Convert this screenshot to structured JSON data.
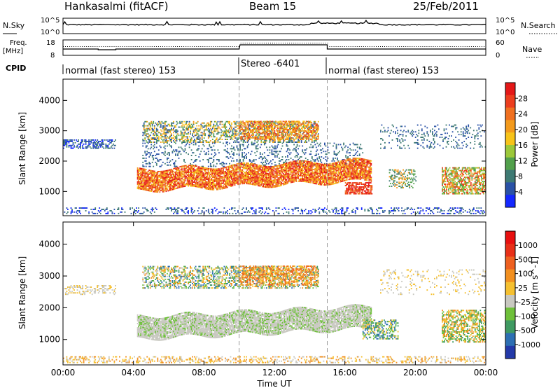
{
  "header": {
    "radar": "Hankasalmi (fitACF)",
    "beam": "Beam 15",
    "date": "25/Feb/2011"
  },
  "noise_panel": {
    "left_label": "N.Sky",
    "right_label": "N.Search",
    "y_ticks": [
      "10^5",
      "10^0"
    ]
  },
  "freq_panel": {
    "left_label_1": "Freq.",
    "left_label_2": "[MHz]",
    "right_label": "Nave",
    "left_ticks": [
      "18",
      "8"
    ],
    "right_ticks": [
      "60",
      "0"
    ]
  },
  "cpid_panel": {
    "label": "CPID",
    "segments": [
      {
        "text": "normal (fast stereo) 153",
        "start_hour": 0
      },
      {
        "text": "Stereo -6401",
        "start_hour": 10
      },
      {
        "text": "normal (fast stereo) 153",
        "start_hour": 15
      }
    ]
  },
  "chart_data": [
    {
      "type": "heatmap",
      "title": "",
      "xlabel": "",
      "ylabel": "Slant Range [km]",
      "xlim": [
        0,
        24
      ],
      "ylim": [
        200,
        4700
      ],
      "y_ticks": [
        1000,
        2000,
        3000,
        4000
      ],
      "mode_changes_hours": [
        10,
        15
      ],
      "colorbar": {
        "label": "Power [dB]",
        "tick_labels": [
          "4",
          "8",
          "12",
          "16",
          "20",
          "24",
          "28"
        ],
        "colors": [
          "#1428ff",
          "#2a52a6",
          "#3e7a73",
          "#52a04c",
          "#9cc83a",
          "#f7c319",
          "#f39a1c",
          "#f07020",
          "#ec3e1e",
          "#e41818"
        ]
      }
    },
    {
      "type": "heatmap",
      "title": "",
      "xlabel": "Time UT",
      "ylabel": "Slant Range [km]",
      "xlim": [
        0,
        24
      ],
      "ylim": [
        200,
        4700
      ],
      "y_ticks": [
        1000,
        2000,
        3000,
        4000
      ],
      "mode_changes_hours": [
        10,
        15
      ],
      "x_tick_labels": [
        "00:00",
        "04:00",
        "08:00",
        "12:00",
        "16:00",
        "20:00",
        "00:00"
      ],
      "colorbar": {
        "label": "Velocity [m s^-1]",
        "tick_labels": [
          "1000",
          "500",
          "100",
          "25",
          "-25",
          "-100",
          "-500",
          "-1000"
        ],
        "colors": [
          "#2339a8",
          "#2d6fb3",
          "#3f9a62",
          "#6ec03a",
          "#c8c8c0",
          "#f5c030",
          "#f29020",
          "#ee6020",
          "#e83018",
          "#e81010"
        ]
      }
    }
  ]
}
